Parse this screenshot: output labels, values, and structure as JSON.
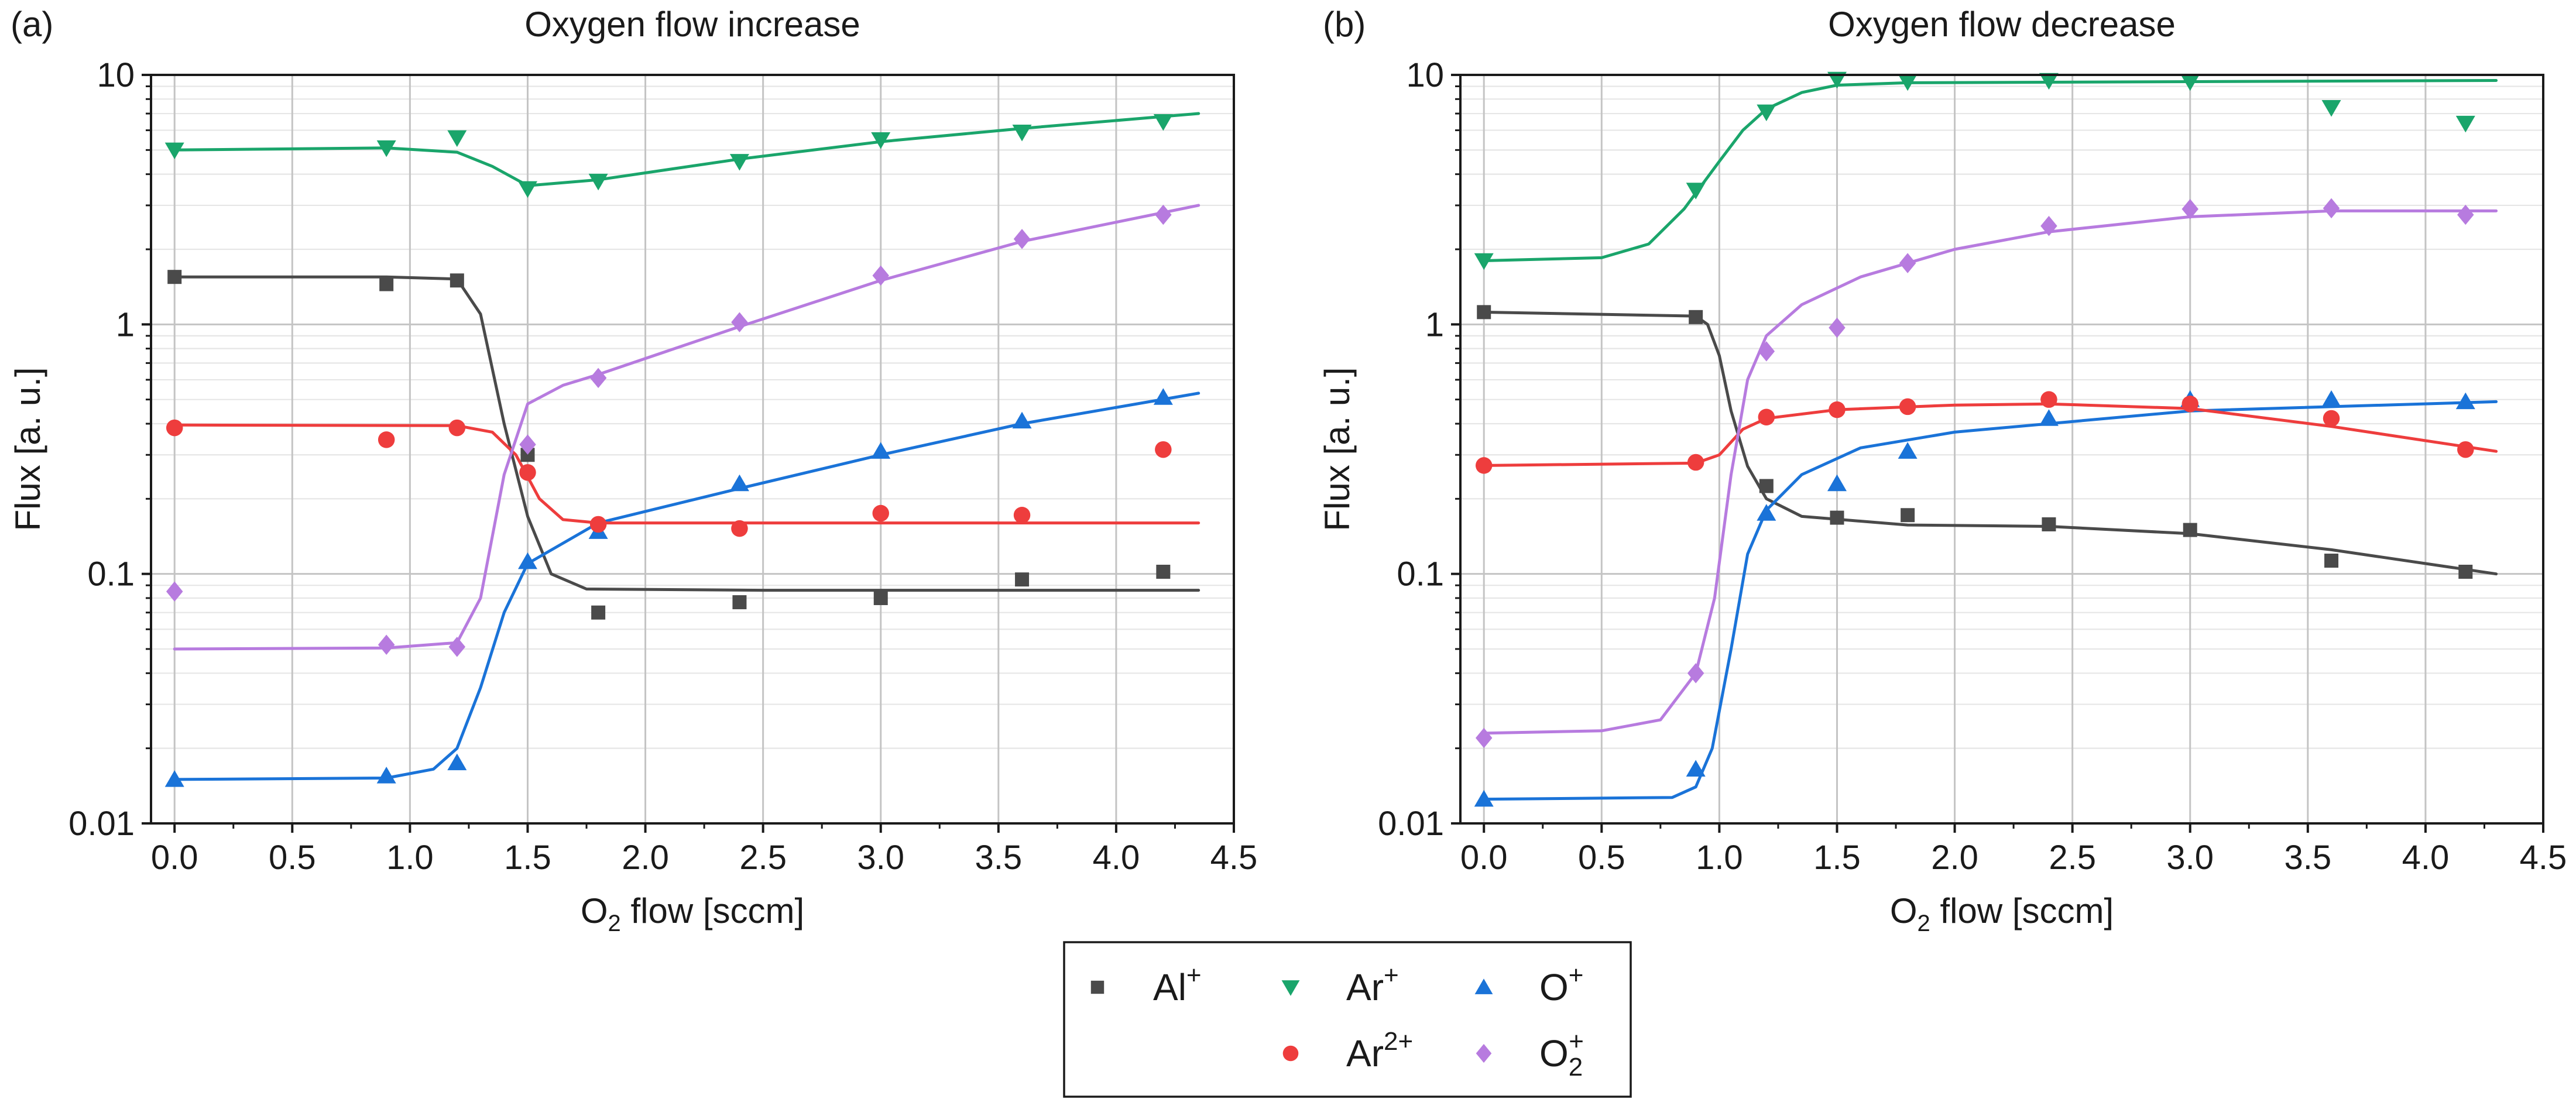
{
  "chart_data": [
    {
      "type": "scatter",
      "panel": "(a)",
      "title": "Oxygen flow increase",
      "xlabel": "O2 flow [sccm]",
      "ylabel": "Flux [a. u.]",
      "xlim": [
        -0.1,
        4.5
      ],
      "ylim": [
        0.01,
        10
      ],
      "yscale": "log",
      "xticks": [
        "0.0",
        "0.5",
        "1.0",
        "1.5",
        "2.0",
        "2.5",
        "3.0",
        "3.5",
        "4.0",
        "4.5"
      ],
      "yticks": [
        "0.01",
        "0.1",
        "1",
        "10"
      ],
      "grid": true,
      "x": [
        0.0,
        0.9,
        1.2,
        1.5,
        1.8,
        2.4,
        3.0,
        3.6,
        4.2
      ],
      "series": [
        {
          "name": "Al+",
          "marker": "square",
          "color": "#4a4a4a",
          "values": [
            1.55,
            1.45,
            1.5,
            0.3,
            0.07,
            0.077,
            0.08,
            0.095,
            0.102
          ],
          "fit": [
            [
              0,
              1.55
            ],
            [
              0.9,
              1.55
            ],
            [
              1.2,
              1.52
            ],
            [
              1.3,
              1.1
            ],
            [
              1.4,
              0.4
            ],
            [
              1.5,
              0.17
            ],
            [
              1.6,
              0.1
            ],
            [
              1.75,
              0.087
            ],
            [
              2.5,
              0.086
            ],
            [
              4.35,
              0.086
            ]
          ]
        },
        {
          "name": "Ar+",
          "marker": "triangle-down",
          "color": "#1aa56b",
          "values": [
            5.0,
            5.1,
            5.6,
            3.5,
            3.75,
            4.5,
            5.5,
            5.9,
            6.5
          ],
          "fit": [
            [
              0,
              5.0
            ],
            [
              0.9,
              5.1
            ],
            [
              1.2,
              4.9
            ],
            [
              1.35,
              4.3
            ],
            [
              1.5,
              3.6
            ],
            [
              1.8,
              3.8
            ],
            [
              2.4,
              4.6
            ],
            [
              3.0,
              5.4
            ],
            [
              3.6,
              6.1
            ],
            [
              4.35,
              7.0
            ]
          ]
        },
        {
          "name": "O+",
          "marker": "triangle-up",
          "color": "#1a73d8",
          "values": [
            0.015,
            0.0155,
            0.0175,
            0.112,
            0.148,
            0.23,
            0.31,
            0.41,
            0.51
          ],
          "fit": [
            [
              0,
              0.015
            ],
            [
              0.9,
              0.0152
            ],
            [
              1.1,
              0.0165
            ],
            [
              1.2,
              0.02
            ],
            [
              1.3,
              0.035
            ],
            [
              1.4,
              0.07
            ],
            [
              1.5,
              0.11
            ],
            [
              1.8,
              0.16
            ],
            [
              2.4,
              0.22
            ],
            [
              3.0,
              0.3
            ],
            [
              3.6,
              0.4
            ],
            [
              4.35,
              0.53
            ]
          ]
        },
        {
          "name": "Ar2+",
          "marker": "circle",
          "color": "#ee3d3d",
          "values": [
            0.385,
            0.345,
            0.385,
            0.255,
            0.158,
            0.152,
            0.175,
            0.172,
            0.315
          ],
          "fit": [
            [
              0,
              0.395
            ],
            [
              1.2,
              0.393
            ],
            [
              1.35,
              0.37
            ],
            [
              1.45,
              0.3
            ],
            [
              1.55,
              0.2
            ],
            [
              1.65,
              0.165
            ],
            [
              1.8,
              0.16
            ],
            [
              4.35,
              0.16
            ]
          ]
        },
        {
          "name": "O2+",
          "marker": "diamond",
          "color": "#b77bdf",
          "values": [
            0.085,
            0.052,
            0.051,
            0.33,
            0.61,
            1.02,
            1.57,
            2.2,
            2.75
          ],
          "fit": [
            [
              0,
              0.05
            ],
            [
              0.9,
              0.0505
            ],
            [
              1.2,
              0.053
            ],
            [
              1.3,
              0.08
            ],
            [
              1.4,
              0.25
            ],
            [
              1.5,
              0.48
            ],
            [
              1.65,
              0.57
            ],
            [
              1.8,
              0.63
            ],
            [
              2.4,
              0.98
            ],
            [
              3.0,
              1.5
            ],
            [
              3.6,
              2.15
            ],
            [
              4.35,
              3.0
            ]
          ]
        }
      ]
    },
    {
      "type": "scatter",
      "panel": "(b)",
      "title": "Oxygen flow decrease",
      "xlabel": "O2 flow [sccm]",
      "ylabel": "Flux [a. u.]",
      "xlim": [
        -0.1,
        4.5
      ],
      "ylim": [
        0.01,
        10
      ],
      "yscale": "log",
      "xticks": [
        "0.0",
        "0.5",
        "1.0",
        "1.5",
        "2.0",
        "2.5",
        "3.0",
        "3.5",
        "4.0",
        "4.5"
      ],
      "yticks": [
        "0.01",
        "0.1",
        "1",
        "10"
      ],
      "grid": true,
      "x": [
        0.0,
        0.9,
        1.2,
        1.5,
        1.8,
        2.4,
        3.0,
        3.6,
        4.17
      ],
      "series": [
        {
          "name": "Al+",
          "marker": "square",
          "color": "#4a4a4a",
          "values": [
            1.12,
            1.07,
            0.225,
            0.168,
            0.172,
            0.158,
            0.15,
            0.113,
            0.102
          ],
          "fit": [
            [
              0,
              1.12
            ],
            [
              0.9,
              1.08
            ],
            [
              0.95,
              1.0
            ],
            [
              1.0,
              0.75
            ],
            [
              1.05,
              0.45
            ],
            [
              1.12,
              0.27
            ],
            [
              1.2,
              0.2
            ],
            [
              1.35,
              0.17
            ],
            [
              1.8,
              0.157
            ],
            [
              2.4,
              0.155
            ],
            [
              3.0,
              0.145
            ],
            [
              3.6,
              0.125
            ],
            [
              4.3,
              0.1
            ]
          ]
        },
        {
          "name": "Ar+",
          "marker": "triangle-down",
          "color": "#1aa56b",
          "values": [
            1.8,
            3.45,
            7.1,
            9.6,
            9.4,
            9.5,
            9.4,
            7.4,
            6.4
          ],
          "fit": [
            [
              0,
              1.8
            ],
            [
              0.5,
              1.85
            ],
            [
              0.7,
              2.1
            ],
            [
              0.85,
              2.9
            ],
            [
              1.0,
              4.5
            ],
            [
              1.1,
              6.0
            ],
            [
              1.2,
              7.3
            ],
            [
              1.35,
              8.5
            ],
            [
              1.5,
              9.1
            ],
            [
              1.8,
              9.3
            ],
            [
              4.3,
              9.5
            ]
          ]
        },
        {
          "name": "O+",
          "marker": "triangle-up",
          "color": "#1a73d8",
          "values": [
            0.0125,
            0.0165,
            0.175,
            0.23,
            0.31,
            0.42,
            0.5,
            0.5,
            0.49
          ],
          "fit": [
            [
              0,
              0.0125
            ],
            [
              0.8,
              0.0127
            ],
            [
              0.9,
              0.014
            ],
            [
              0.97,
              0.02
            ],
            [
              1.05,
              0.05
            ],
            [
              1.12,
              0.12
            ],
            [
              1.2,
              0.18
            ],
            [
              1.35,
              0.25
            ],
            [
              1.6,
              0.32
            ],
            [
              2.0,
              0.37
            ],
            [
              3.0,
              0.45
            ],
            [
              4.3,
              0.49
            ]
          ]
        },
        {
          "name": "Ar2+",
          "marker": "circle",
          "color": "#ee3d3d",
          "values": [
            0.272,
            0.28,
            0.425,
            0.455,
            0.468,
            0.5,
            0.48,
            0.42,
            0.315
          ],
          "fit": [
            [
              0,
              0.272
            ],
            [
              0.9,
              0.278
            ],
            [
              1.0,
              0.3
            ],
            [
              1.1,
              0.38
            ],
            [
              1.2,
              0.42
            ],
            [
              1.5,
              0.455
            ],
            [
              2.0,
              0.475
            ],
            [
              2.4,
              0.48
            ],
            [
              3.0,
              0.46
            ],
            [
              3.6,
              0.39
            ],
            [
              4.3,
              0.31
            ]
          ]
        },
        {
          "name": "O2+",
          "marker": "diamond",
          "color": "#b77bdf",
          "values": [
            0.022,
            0.04,
            0.78,
            0.97,
            1.76,
            2.48,
            2.9,
            2.92,
            2.75
          ],
          "fit": [
            [
              0,
              0.023
            ],
            [
              0.5,
              0.0235
            ],
            [
              0.75,
              0.026
            ],
            [
              0.9,
              0.04
            ],
            [
              0.98,
              0.08
            ],
            [
              1.05,
              0.25
            ],
            [
              1.12,
              0.6
            ],
            [
              1.2,
              0.9
            ],
            [
              1.35,
              1.2
            ],
            [
              1.6,
              1.55
            ],
            [
              2.0,
              2.0
            ],
            [
              2.4,
              2.35
            ],
            [
              3.0,
              2.7
            ],
            [
              3.6,
              2.85
            ],
            [
              4.3,
              2.85
            ]
          ]
        }
      ]
    }
  ],
  "legend": {
    "placement": "bottom-center",
    "entries": [
      {
        "key": "Al+",
        "label": "Al",
        "sup": "+",
        "sub": "",
        "marker": "square",
        "color": "#4a4a4a"
      },
      {
        "key": "Ar+",
        "label": "Ar",
        "sup": "+",
        "sub": "",
        "marker": "triangle-down",
        "color": "#1aa56b"
      },
      {
        "key": "O+",
        "label": "O",
        "sup": "+",
        "sub": "",
        "marker": "triangle-up",
        "color": "#1a73d8"
      },
      {
        "key": "Ar2+",
        "label": "Ar",
        "sup": "2+",
        "sub": "",
        "marker": "circle",
        "color": "#ee3d3d"
      },
      {
        "key": "O2+",
        "label": "O",
        "sup": "+",
        "sub": "2",
        "marker": "diamond",
        "color": "#b77bdf"
      }
    ]
  }
}
